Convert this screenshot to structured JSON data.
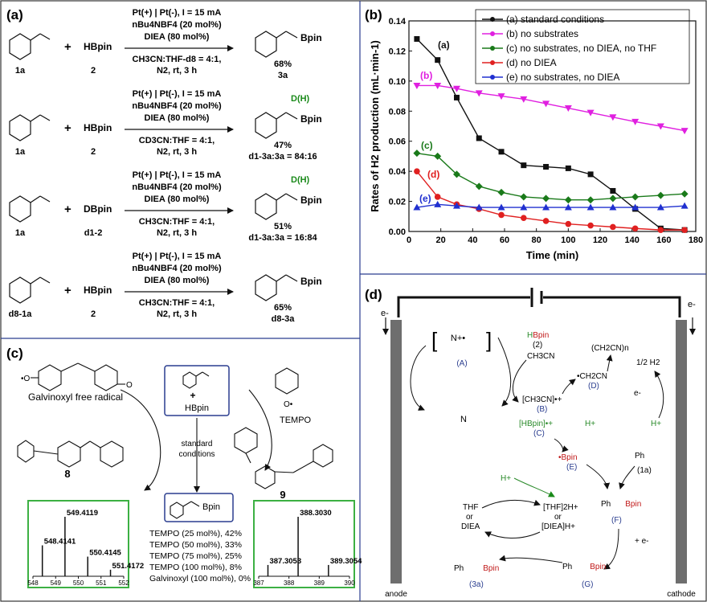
{
  "panel_labels": {
    "a": "(a)",
    "b": "(b)",
    "c": "(c)",
    "d": "(d)"
  },
  "panel_a": {
    "rows": [
      {
        "substrate": "1a",
        "reagent": "HBpin",
        "reagent_label": "2",
        "conditions": [
          "Pt(+) | Pt(-), I = 15 mA",
          "nBu4NBF4 (20 mol%)",
          "DIEA (80 mol%)"
        ],
        "solvent": "CH3CN:THF-d8 = 4:1,",
        "atm": "N2, rt, 3 h",
        "product_label": "Bpin",
        "yield": "68%",
        "ratio": "3a"
      },
      {
        "substrate": "1a",
        "reagent": "HBpin",
        "reagent_label": "2",
        "conditions": [
          "Pt(+) | Pt(-), I = 15 mA",
          "nBu4NBF4 (20 mol%)",
          "DIEA (80 mol%)"
        ],
        "solvent": "CD3CN:THF = 4:1,",
        "atm": "N2, rt, 3 h",
        "product_label": "Bpin",
        "dh": "D(H)",
        "yield": "47%",
        "ratio": "d1-3a:3a = 84:16"
      },
      {
        "substrate": "1a",
        "reagent": "DBpin",
        "reagent_label": "d1-2",
        "conditions": [
          "Pt(+) | Pt(-), I = 15 mA",
          "nBu4NBF4 (20 mol%)",
          "DIEA (80 mol%)"
        ],
        "solvent": "CH3CN:THF = 4:1,",
        "atm": "N2, rt, 3 h",
        "product_label": "Bpin",
        "dh": "D(H)",
        "yield": "51%",
        "ratio": "d1-3a:3a = 16:84"
      },
      {
        "substrate": "d8-1a",
        "reagent": "HBpin",
        "reagent_label": "2",
        "conditions": [
          "Pt(+) | Pt(-), I = 15 mA",
          "nBu4NBF4 (20 mol%)",
          "DIEA (80 mol%)"
        ],
        "solvent": "CH3CN:THF = 4:1,",
        "atm": "N2, rt, 3 h",
        "product_label": "Bpin",
        "yield": "65%",
        "ratio": "d8-3a"
      }
    ]
  },
  "panel_c": {
    "galvinoxyl_label": "Galvinoxyl free radical",
    "tempo_label": "TEMPO",
    "center_reagent": "HBpin",
    "center_conditions": [
      "standard",
      "conditions"
    ],
    "product_label": "Bpin",
    "adduct_left": "8",
    "adduct_right": "9",
    "results": [
      "TEMPO (25 mol%), 42%",
      "TEMPO (50 mol%), 33%",
      "TEMPO (75 mol%), 25%",
      "TEMPO (100 mol%), 8%",
      "Galvinoxyl (100 mol%), 0%"
    ],
    "ms_left": {
      "peaks": [
        {
          "mz": 548.4141,
          "label": "548.4141",
          "rel": 0.52
        },
        {
          "mz": 549.4119,
          "label": "549.4119",
          "rel": 1.0
        },
        {
          "mz": 550.4145,
          "label": "550.4145",
          "rel": 0.33
        },
        {
          "mz": 551.4172,
          "label": "551.4172",
          "rel": 0.11
        }
      ],
      "ticks": [
        "548",
        "549",
        "550",
        "551",
        "552"
      ]
    },
    "ms_right": {
      "peaks": [
        {
          "mz": 387.3053,
          "label": "387.3053",
          "rel": 0.19
        },
        {
          "mz": 388.303,
          "label": "388.3030",
          "rel": 1.0
        },
        {
          "mz": 389.3054,
          "label": "389.3054",
          "rel": 0.19
        }
      ],
      "ticks": [
        "387",
        "388",
        "389",
        "390"
      ]
    }
  },
  "panel_d": {
    "electron_left": "e-",
    "electron_right": "e-",
    "anode": "anode",
    "cathode": "cathode",
    "species": {
      "hbpin": "HBpin",
      "hbpin_num": "(2)",
      "ch3cn": "CH3CN",
      "A": "(A)",
      "B_text": "[CH3CN]•+",
      "B": "(B)",
      "C_text": "[HBpin]•+",
      "C": "(C)",
      "D_text": "•CH2CN",
      "D": "(D)",
      "poly": "(CH2CN)n",
      "h2": "1/2 H2",
      "eminus": "e-",
      "hplus": "H+",
      "hplus2": "H+",
      "hplus3": "H+",
      "bpin_rad": "•Bpin",
      "E": "(E)",
      "ph": "Ph",
      "one_a": "(1a)",
      "F": "(F)",
      "plus_e": "+ e-",
      "thf": "THF",
      "or1": "or",
      "diea": "DIEA",
      "thfh": "[THF]2H+",
      "or2": "or",
      "dieah": "[DIEA]H+",
      "three_a": "(3a)",
      "G": "(G)",
      "bpin1": "Bpin",
      "bpin2": "Bpin",
      "bpin3": "Bpin"
    }
  },
  "chart_data": {
    "type": "line",
    "xlabel": "Time (min)",
    "ylabel": "Rates of H2 production (mL·min-1)",
    "xlim": [
      0,
      180
    ],
    "ylim": [
      0,
      0.14
    ],
    "xticks": [
      0,
      20,
      40,
      60,
      80,
      100,
      120,
      140,
      160,
      180
    ],
    "yticks": [
      0.0,
      0.02,
      0.04,
      0.06,
      0.08,
      0.1,
      0.12,
      0.14
    ],
    "legend_position": "top-right",
    "series": [
      {
        "name": "(a) standard conditions",
        "tag": "(a)",
        "color": "#111111",
        "marker": "square",
        "x": [
          5,
          18,
          30,
          44,
          58,
          72,
          86,
          100,
          114,
          128,
          142,
          158,
          173
        ],
        "y": [
          0.128,
          0.114,
          0.089,
          0.062,
          0.053,
          0.044,
          0.043,
          0.042,
          0.038,
          0.027,
          0.015,
          0.002,
          0.001
        ]
      },
      {
        "name": "(b) no substrates",
        "tag": "(b)",
        "color": "#e020e0",
        "marker": "triangle-down",
        "x": [
          5,
          18,
          30,
          44,
          58,
          72,
          86,
          100,
          114,
          128,
          142,
          158,
          173
        ],
        "y": [
          0.097,
          0.097,
          0.095,
          0.092,
          0.09,
          0.088,
          0.085,
          0.082,
          0.079,
          0.076,
          0.073,
          0.07,
          0.067
        ]
      },
      {
        "name": "(c) no substrates, no DIEA, no THF",
        "tag": "(c)",
        "color": "#1a7a1a",
        "marker": "diamond",
        "x": [
          5,
          18,
          30,
          44,
          58,
          72,
          86,
          100,
          114,
          128,
          142,
          158,
          173
        ],
        "y": [
          0.052,
          0.05,
          0.038,
          0.03,
          0.026,
          0.023,
          0.022,
          0.021,
          0.021,
          0.022,
          0.023,
          0.024,
          0.025
        ]
      },
      {
        "name": "(d) no DIEA",
        "tag": "(d)",
        "color": "#e02020",
        "marker": "circle",
        "x": [
          5,
          18,
          30,
          44,
          58,
          72,
          86,
          100,
          114,
          128,
          142,
          158,
          173
        ],
        "y": [
          0.04,
          0.023,
          0.018,
          0.015,
          0.011,
          0.009,
          0.007,
          0.005,
          0.004,
          0.003,
          0.002,
          0.001,
          0.001
        ]
      },
      {
        "name": "(e) no substrates, no DIEA",
        "tag": "(e)",
        "color": "#2030d0",
        "marker": "triangle-up",
        "x": [
          5,
          18,
          30,
          44,
          58,
          72,
          86,
          100,
          114,
          128,
          142,
          158,
          173
        ],
        "y": [
          0.016,
          0.018,
          0.017,
          0.016,
          0.016,
          0.016,
          0.016,
          0.016,
          0.016,
          0.016,
          0.016,
          0.016,
          0.017
        ]
      }
    ]
  }
}
